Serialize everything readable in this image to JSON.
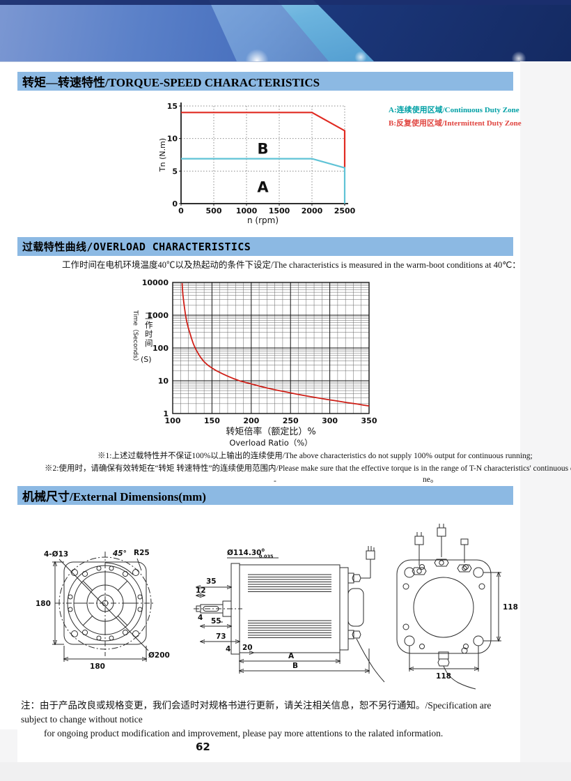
{
  "theme": {
    "section_bar_color": "#8cb9e3",
    "banner_navy": "#1d3a80",
    "banner_blue": "#4870be",
    "banner_cyan": "#5aa8d8",
    "overload_curve_red": "#cf2018",
    "zone_a_color": "#5fc3d6",
    "zone_b_color": "#e02a21",
    "legend_a_color": "#00a0a5",
    "legend_b_color": "#e04540"
  },
  "sections": {
    "torque_speed": {
      "title": "转矩—转速特性/TORQUE-SPEED CHARACTERISTICS",
      "legend": [
        {
          "label": "A:连续使用区域/Continuous Duty Zone",
          "color": "#00a0a5"
        },
        {
          "label": "B:反复使用区域/Intermittent Duty Zone",
          "color": "#e04540"
        }
      ]
    },
    "overload": {
      "title": "过载特性曲线/OVERLOAD CHARACTERISTICS",
      "condition": "工作时间在电机环境温度40℃以及热起动的条件下设定/The characteristics is measured in the warm-boot conditions at 40℃：",
      "note1": "※1:上述过载特性并不保证100%以上输出的连续使用/The above characteristics do not supply 100% output for continuous running;",
      "note2": "※2:使用时，请确保有效转矩在“转矩 转速特性”的连续使用范围内/Please make sure that the effective torque is in the range of T-N characteristics' continuous duty zone",
      "note_dash": "-",
      "note_overflow": "ne。"
    },
    "dimensions": {
      "title": "机械尺寸/External Dimensions(mm)",
      "front_view": {
        "hole_note": "4-Ø13",
        "angle": "45°",
        "corner_radius": "R25",
        "height": "180",
        "width": "180",
        "outer_dia": "Ø200"
      },
      "side_view": {
        "shaft_dia": "Ø114.30",
        "tol_upper": "0",
        "tol_lower": "0.035",
        "shaft_len": "35",
        "tip_len": "12",
        "step1": "4",
        "key_len": "55",
        "front_len": "73",
        "step2": "4",
        "cap_len": "20",
        "dim_a": "A",
        "dim_b": "B"
      },
      "rear_view": {
        "height": "118",
        "width": "118"
      }
    }
  },
  "footer": {
    "note_line1": "注：由于产品改良或规格变更，我们会适时对规格书进行更新，请关注相关信息，恕不另行通知。/Specification are subject to change without notice",
    "note_line2": "for ongoing product modification and improvement, please pay more attentions to the ralated information.",
    "page_number": "62"
  },
  "chart_data": [
    {
      "type": "line",
      "title": "Torque-Speed Characteristics",
      "xlabel": "n (rpm)",
      "ylabel": "Tn (N.m)",
      "xlim": [
        0,
        2500
      ],
      "ylim": [
        0,
        15
      ],
      "x_ticks": [
        0,
        500,
        1000,
        1500,
        2000,
        2500
      ],
      "y_ticks": [
        0,
        5,
        10,
        15
      ],
      "grid": "dotted",
      "legend_position": "right-outside",
      "series": [
        {
          "name": "B Intermittent Duty Zone limit",
          "color": "#e02a21",
          "points": [
            [
              0,
              14
            ],
            [
              2000,
              14
            ],
            [
              2500,
              11.2
            ],
            [
              2500,
              5.6
            ]
          ]
        },
        {
          "name": "A Continuous Duty Zone limit",
          "color": "#5fc3d6",
          "points": [
            [
              0,
              6.9
            ],
            [
              2000,
              6.9
            ],
            [
              2500,
              5.5
            ],
            [
              2500,
              0
            ]
          ]
        }
      ],
      "annotations": [
        {
          "text": "B",
          "x": 1250,
          "y": 8.4,
          "color": "#e02a21"
        },
        {
          "text": "A",
          "x": 1250,
          "y": 2.5,
          "color": "#5fc3d6"
        }
      ]
    },
    {
      "type": "line",
      "title": "Overload Characteristics",
      "xlabel_cn": "转矩倍率（额定比）%",
      "xlabel_en": "Overload Ratio（%）",
      "ylabel_en": "Time（Seconds）",
      "ylabel_cn": "工作时间",
      "ylabel_unit": "(S)",
      "xlim": [
        100,
        350
      ],
      "x_ticks": [
        100,
        150,
        200,
        250,
        300,
        350
      ],
      "x_minor_step": 10,
      "y_scale": "log",
      "ylog": [
        1,
        10000
      ],
      "y_ticks": [
        1,
        10,
        100,
        1000,
        10000
      ],
      "grid": "log-full",
      "series": [
        {
          "name": "overload time limit",
          "color": "#cf2018",
          "points": [
            [
              112,
              9500
            ],
            [
              112.5,
              6000
            ],
            [
              113,
              4200
            ],
            [
              114,
              2600
            ],
            [
              115,
              1700
            ],
            [
              116,
              1150
            ],
            [
              117,
              820
            ],
            [
              118,
              620
            ],
            [
              120,
              400
            ],
            [
              122,
              280
            ],
            [
              124,
              195
            ],
            [
              126,
              140
            ],
            [
              128,
              108
            ],
            [
              130,
              86
            ],
            [
              133,
              64
            ],
            [
              136,
              50
            ],
            [
              140,
              38
            ],
            [
              145,
              29.5
            ],
            [
              150,
              24.5
            ],
            [
              156,
              20
            ],
            [
              163,
              16.5
            ],
            [
              170,
              13.8
            ],
            [
              178,
              11.5
            ],
            [
              186,
              9.8
            ],
            [
              195,
              8.6
            ],
            [
              200,
              8
            ],
            [
              210,
              6.9
            ],
            [
              220,
              6
            ],
            [
              232,
              5.2
            ],
            [
              245,
              4.5
            ],
            [
              258,
              3.9
            ],
            [
              270,
              3.45
            ],
            [
              283,
              3.05
            ],
            [
              296,
              2.7
            ],
            [
              310,
              2.4
            ],
            [
              322,
              2.15
            ],
            [
              335,
              1.95
            ],
            [
              343,
              1.8
            ],
            [
              350,
              1.7
            ]
          ]
        }
      ]
    }
  ]
}
